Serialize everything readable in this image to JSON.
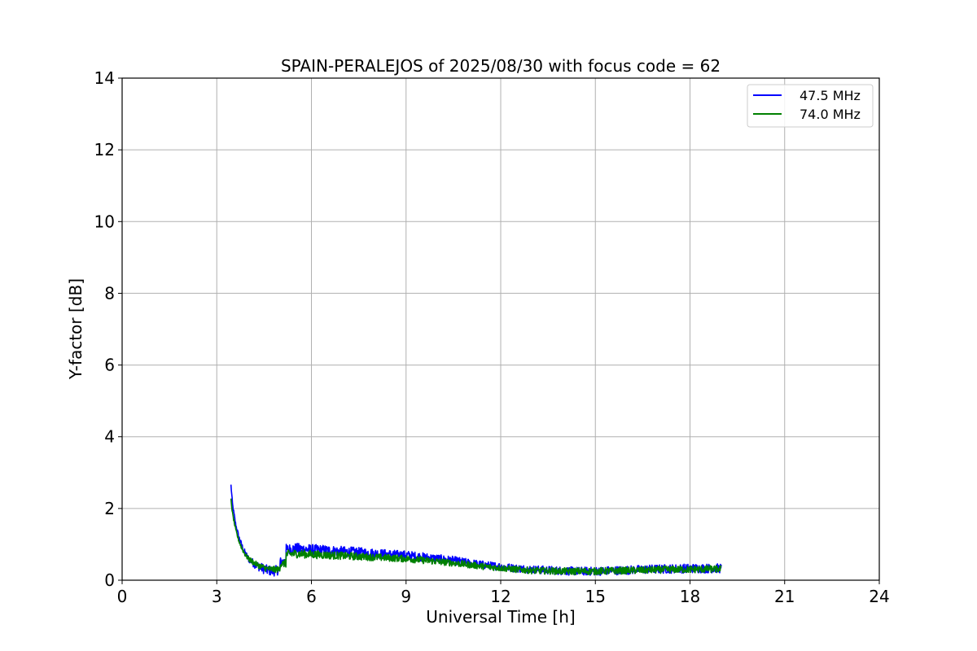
{
  "chart_data": {
    "type": "line",
    "title": "SPAIN-PERALEJOS of 2025/08/30 with focus code = 62",
    "xlabel": "Universal Time [h]",
    "ylabel": "Y-factor [dB]",
    "xlim": [
      0,
      24
    ],
    "ylim": [
      0,
      14
    ],
    "xticks": [
      0,
      3,
      6,
      9,
      12,
      15,
      18,
      21,
      24
    ],
    "yticks": [
      0,
      2,
      4,
      6,
      8,
      10,
      12,
      14
    ],
    "grid": true,
    "legend_position": "top-right",
    "series": [
      {
        "name": "47.5 MHz",
        "color": "#0000ff",
        "points": [
          [
            3.45,
            2.65
          ],
          [
            3.5,
            2.1
          ],
          [
            3.6,
            1.55
          ],
          [
            3.7,
            1.2
          ],
          [
            3.8,
            0.95
          ],
          [
            3.9,
            0.75
          ],
          [
            4.0,
            0.6
          ],
          [
            4.2,
            0.45
          ],
          [
            4.4,
            0.35
          ],
          [
            4.6,
            0.28
          ],
          [
            4.8,
            0.25
          ],
          [
            5.0,
            0.3
          ],
          [
            5.0,
            0.5
          ],
          [
            5.2,
            0.52
          ],
          [
            5.2,
            0.85
          ],
          [
            5.5,
            0.88
          ],
          [
            6.0,
            0.85
          ],
          [
            6.5,
            0.83
          ],
          [
            7.0,
            0.8
          ],
          [
            7.5,
            0.78
          ],
          [
            8.0,
            0.75
          ],
          [
            8.5,
            0.72
          ],
          [
            9.0,
            0.7
          ],
          [
            9.5,
            0.65
          ],
          [
            10.0,
            0.6
          ],
          [
            10.5,
            0.55
          ],
          [
            11.0,
            0.48
          ],
          [
            11.5,
            0.42
          ],
          [
            12.0,
            0.38
          ],
          [
            12.5,
            0.33
          ],
          [
            13.0,
            0.3
          ],
          [
            13.5,
            0.28
          ],
          [
            14.0,
            0.26
          ],
          [
            14.5,
            0.25
          ],
          [
            15.0,
            0.25
          ],
          [
            15.5,
            0.27
          ],
          [
            16.0,
            0.28
          ],
          [
            16.5,
            0.3
          ],
          [
            17.0,
            0.31
          ],
          [
            17.5,
            0.32
          ],
          [
            18.0,
            0.33
          ],
          [
            18.5,
            0.33
          ],
          [
            19.0,
            0.33
          ]
        ],
        "noise": [
          [
            3.45,
            0.05
          ],
          [
            4.0,
            0.1
          ],
          [
            4.5,
            0.14
          ],
          [
            5.0,
            0.14
          ],
          [
            5.2,
            0.16
          ],
          [
            8.0,
            0.13
          ],
          [
            12.0,
            0.11
          ],
          [
            15.0,
            0.12
          ],
          [
            19.0,
            0.13
          ]
        ]
      },
      {
        "name": "74.0 MHz",
        "color": "#008000",
        "points": [
          [
            3.45,
            2.25
          ],
          [
            3.5,
            1.85
          ],
          [
            3.6,
            1.4
          ],
          [
            3.7,
            1.1
          ],
          [
            3.8,
            0.88
          ],
          [
            3.9,
            0.72
          ],
          [
            4.0,
            0.6
          ],
          [
            4.2,
            0.47
          ],
          [
            4.4,
            0.38
          ],
          [
            4.6,
            0.32
          ],
          [
            4.8,
            0.3
          ],
          [
            5.0,
            0.3
          ],
          [
            5.0,
            0.45
          ],
          [
            5.2,
            0.47
          ],
          [
            5.2,
            0.72
          ],
          [
            5.5,
            0.74
          ],
          [
            6.0,
            0.72
          ],
          [
            6.5,
            0.7
          ],
          [
            7.0,
            0.68
          ],
          [
            7.5,
            0.66
          ],
          [
            8.0,
            0.64
          ],
          [
            8.5,
            0.62
          ],
          [
            9.0,
            0.6
          ],
          [
            9.5,
            0.56
          ],
          [
            10.0,
            0.52
          ],
          [
            10.5,
            0.48
          ],
          [
            11.0,
            0.43
          ],
          [
            11.5,
            0.38
          ],
          [
            12.0,
            0.34
          ],
          [
            12.5,
            0.3
          ],
          [
            13.0,
            0.27
          ],
          [
            13.5,
            0.26
          ],
          [
            14.0,
            0.25
          ],
          [
            14.5,
            0.25
          ],
          [
            15.0,
            0.25
          ],
          [
            15.5,
            0.26
          ],
          [
            16.0,
            0.27
          ],
          [
            16.5,
            0.28
          ],
          [
            17.0,
            0.29
          ],
          [
            17.5,
            0.3
          ],
          [
            18.0,
            0.3
          ],
          [
            18.5,
            0.31
          ],
          [
            19.0,
            0.31
          ]
        ],
        "noise": [
          [
            3.45,
            0.04
          ],
          [
            4.0,
            0.07
          ],
          [
            4.5,
            0.09
          ],
          [
            5.0,
            0.09
          ],
          [
            5.2,
            0.12
          ],
          [
            8.0,
            0.1
          ],
          [
            12.0,
            0.09
          ],
          [
            15.0,
            0.1
          ],
          [
            19.0,
            0.1
          ]
        ]
      }
    ]
  }
}
